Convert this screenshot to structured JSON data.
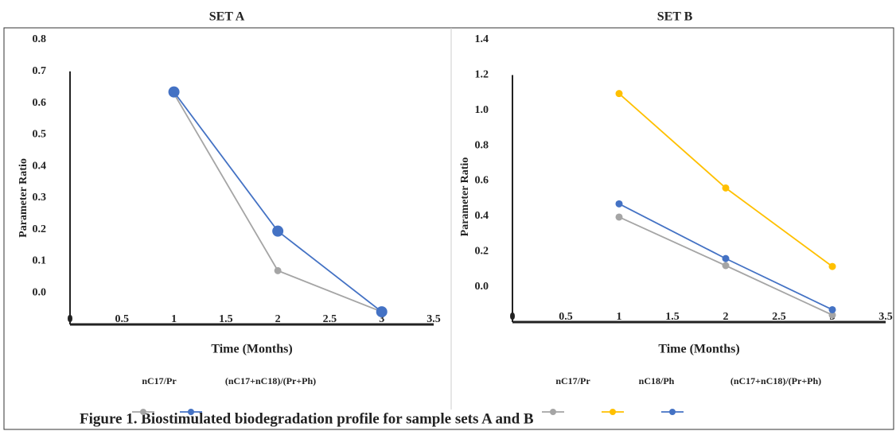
{
  "chart_data": [
    {
      "type": "line",
      "title": "SET A",
      "x_label": "Time (Months)",
      "y_label": "Parameter Ratio",
      "x": [
        1,
        2,
        3
      ],
      "series": [
        {
          "name": "nC17/Pr",
          "color": "#a5a5a5",
          "values": [
            0.63,
            0.07,
            -0.06
          ]
        },
        {
          "name": "(nC17+nC18)/(Pr+Ph)",
          "color": "#4472c4",
          "values": [
            0.635,
            0.195,
            -0.06
          ]
        }
      ],
      "xlim": [
        0,
        3.5
      ],
      "xticks": [
        0,
        0.5,
        1,
        1.5,
        2,
        2.5,
        3,
        3.5
      ],
      "ylim": [
        -0.1,
        0.8
      ],
      "yticks": [
        {
          "value": 0,
          "label": "0.0"
        },
        0.1,
        0.2,
        0.3,
        0.4,
        0.5,
        0.6,
        0.7,
        0.8
      ]
    },
    {
      "type": "line",
      "title": "SET B",
      "x_label": "Time (Months)",
      "y_label": "Parameter Ratio",
      "x": [
        1,
        2,
        3
      ],
      "series": [
        {
          "name": "nC17/Pr",
          "color": "#a5a5a5",
          "values": [
            0.395,
            0.12,
            -0.16
          ]
        },
        {
          "name": "nC18/Ph",
          "color": "#ffc000",
          "values": [
            1.095,
            0.56,
            0.115
          ]
        },
        {
          "name": "(nC17+nC18)/(Pr+Ph)",
          "color": "#4472c4",
          "values": [
            0.47,
            0.16,
            -0.13
          ]
        }
      ],
      "xlim": [
        0,
        3.5
      ],
      "xticks": [
        0,
        0.5,
        1,
        1.5,
        2,
        2.5,
        3,
        3.5
      ],
      "ylim": [
        -0.2,
        1.4
      ],
      "yticks": [
        {
          "value": 0,
          "label": "0.0"
        },
        0.2,
        0.4,
        0.6,
        0.8,
        {
          "value": 1,
          "label": "1.0"
        },
        1.2,
        1.4
      ]
    }
  ],
  "caption": "Figure 1. Biostimulated biodegradation profile for sample sets A and B"
}
